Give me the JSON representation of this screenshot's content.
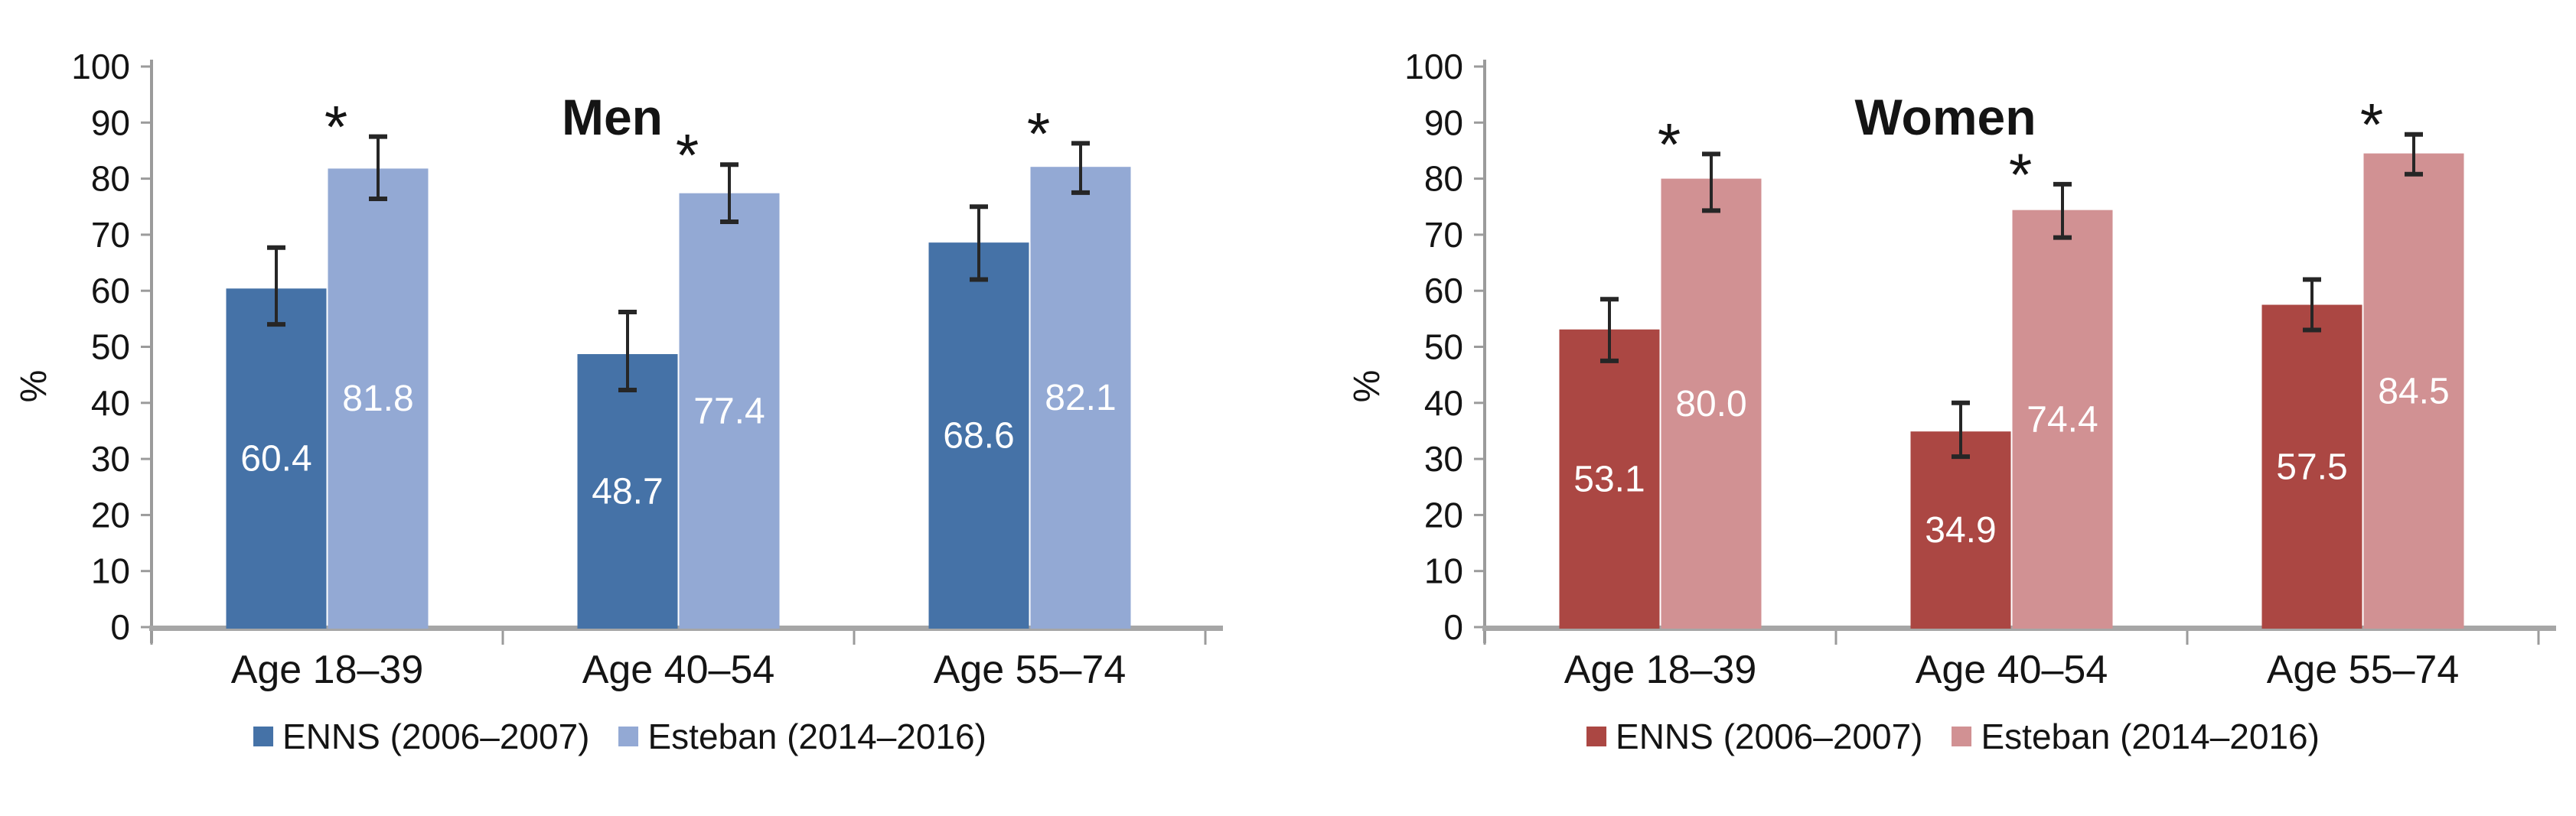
{
  "figure": {
    "background": "#ffffff",
    "text_color": "#141414",
    "axis_line_color": "#9b9b9b",
    "baseline_color": "#a6a6a6",
    "error_bar_color": "#262626",
    "bar_label_color": "#ffffff"
  },
  "chart_data": [
    {
      "type": "bar",
      "title": "Men",
      "ylabel": "%",
      "ylim": [
        0,
        100
      ],
      "yticks": [
        0,
        10,
        20,
        30,
        40,
        50,
        60,
        70,
        80,
        90,
        100
      ],
      "grid": false,
      "legend_position": "bottom",
      "significance_marker": "*",
      "categories": [
        "Age 18–39",
        "Age 40–54",
        "Age 55–74"
      ],
      "series": [
        {
          "name": "ENNS (2006–2007)",
          "color": "#4572a7",
          "values": [
            60.4,
            48.7,
            68.6
          ],
          "error_low": [
            54.0,
            42.3,
            62.0
          ],
          "error_high": [
            67.7,
            56.2,
            75.0
          ],
          "significant": [
            false,
            false,
            false
          ]
        },
        {
          "name": "Esteban (2014–2016)",
          "color": "#93a9d4",
          "values": [
            81.8,
            77.4,
            82.1
          ],
          "error_low": [
            76.4,
            72.3,
            77.5
          ],
          "error_high": [
            87.5,
            82.5,
            86.3
          ],
          "significant": [
            true,
            true,
            true
          ]
        }
      ]
    },
    {
      "type": "bar",
      "title": "Women",
      "ylabel": "%",
      "ylim": [
        0,
        100
      ],
      "yticks": [
        0,
        10,
        20,
        30,
        40,
        50,
        60,
        70,
        80,
        90,
        100
      ],
      "grid": false,
      "legend_position": "bottom",
      "significance_marker": "*",
      "categories": [
        "Age 18–39",
        "Age 40–54",
        "Age 55–74"
      ],
      "series": [
        {
          "name": "ENNS (2006–2007)",
          "color": "#ab4743",
          "values": [
            53.1,
            34.9,
            57.5
          ],
          "error_low": [
            47.5,
            30.4,
            53.0
          ],
          "error_high": [
            58.5,
            40.0,
            62.0
          ],
          "significant": [
            false,
            false,
            false
          ]
        },
        {
          "name": "Esteban (2014–2016)",
          "color": "#d19193",
          "values": [
            80.0,
            74.4,
            84.5
          ],
          "error_low": [
            74.3,
            69.5,
            80.8
          ],
          "error_high": [
            84.4,
            79.0,
            87.9
          ],
          "significant": [
            true,
            true,
            true
          ]
        }
      ]
    }
  ]
}
